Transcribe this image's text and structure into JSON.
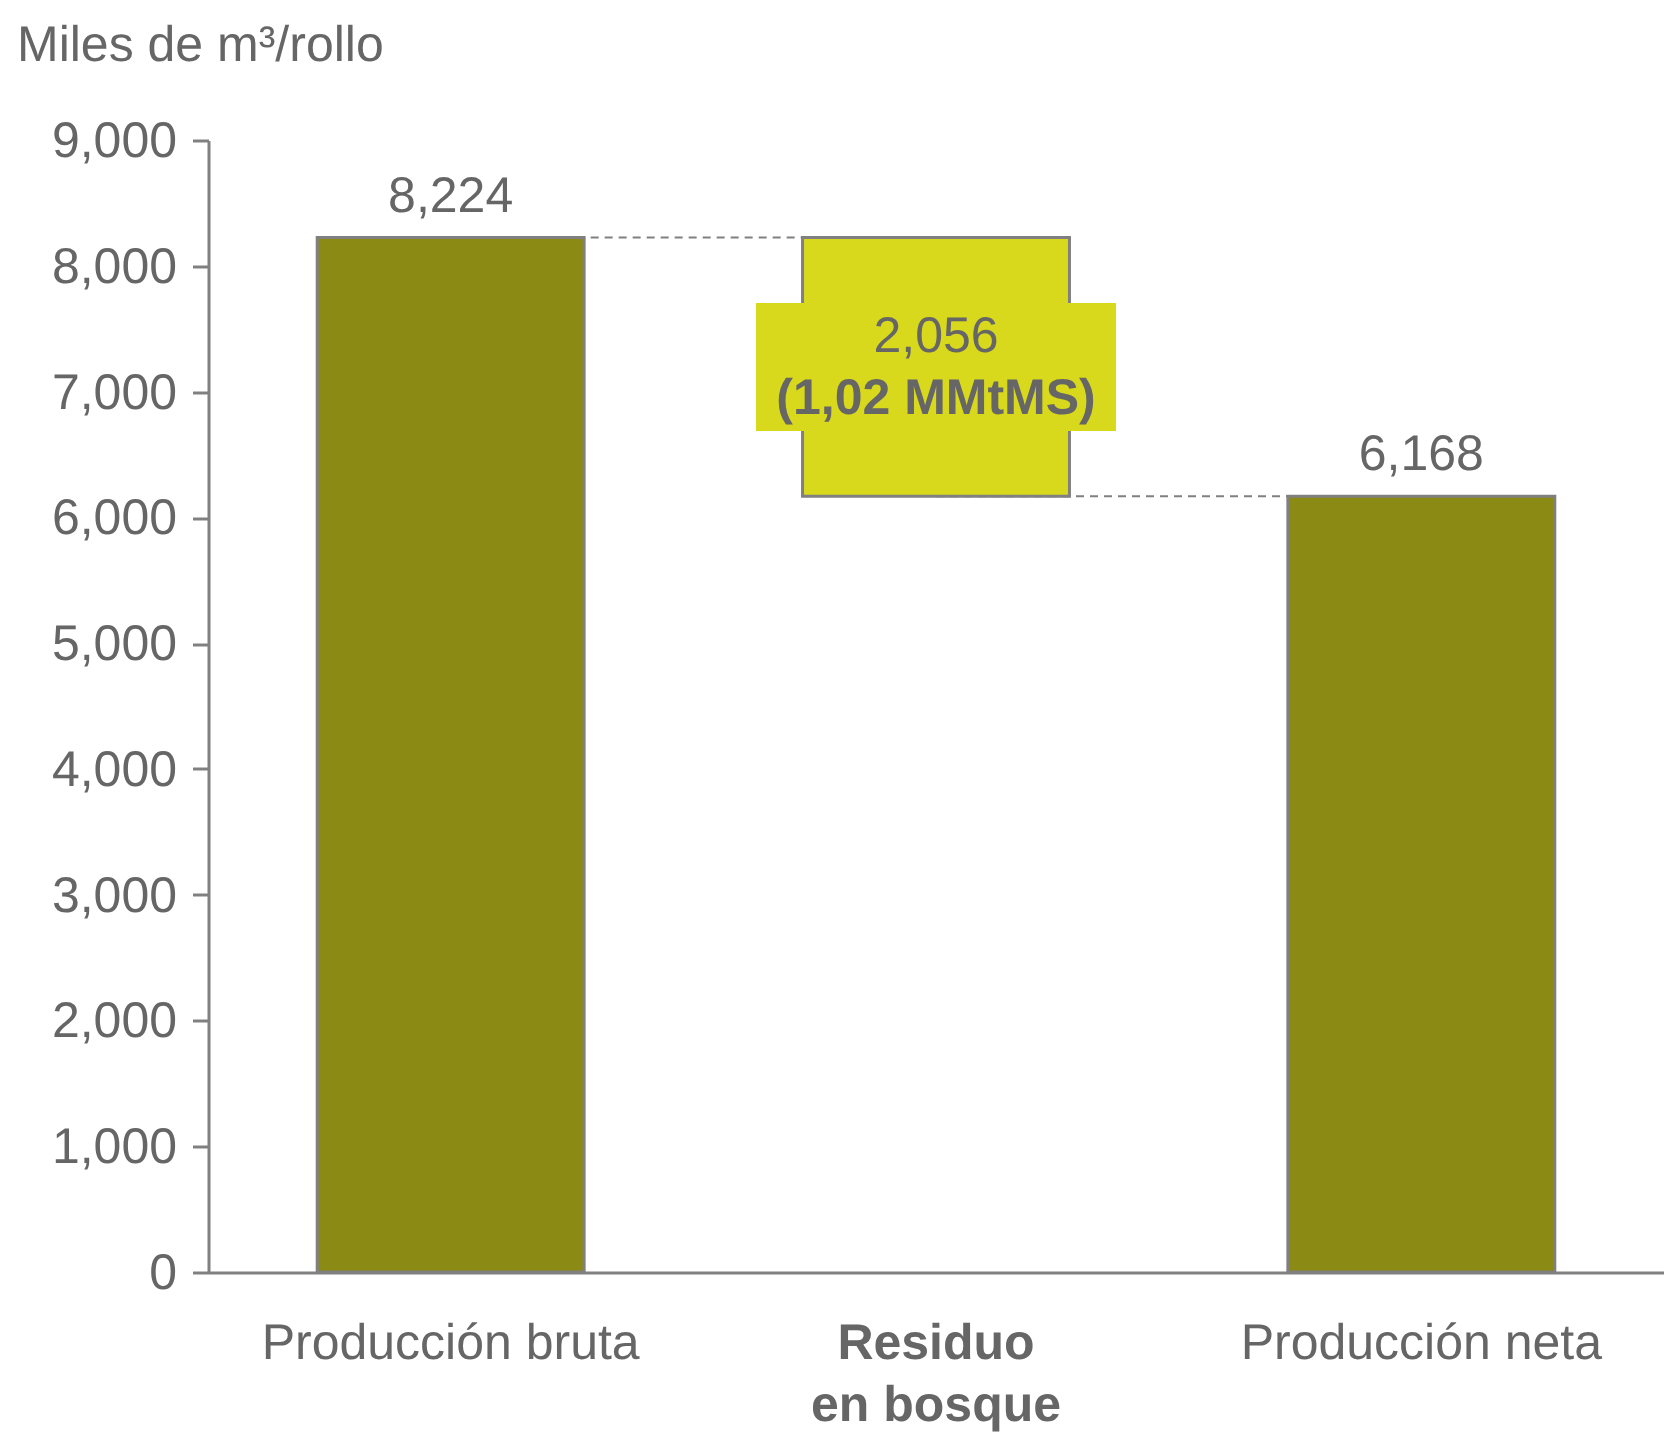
{
  "chart_data": {
    "type": "bar",
    "ylabel": "Miles de m³/rollo",
    "categories": [
      "Producción bruta",
      "Residuo\nen bosque",
      "Producción neta"
    ],
    "values": [
      8224,
      2056,
      6168
    ],
    "base": [
      0,
      6168,
      0
    ],
    "colors": [
      "#8a8a14",
      "#d8d81c",
      "#8a8a14"
    ],
    "value_labels": [
      "8,224",
      "2,056\n(1,02 MMtMS)",
      "6,168"
    ],
    "ylim": [
      0,
      9000
    ],
    "yticks": [
      0,
      {
        "value": 1000,
        "label": "1,000"
      },
      {
        "value": 2000,
        "label": "2,000"
      },
      {
        "value": 3000,
        "label": "3,000"
      },
      {
        "value": 4000,
        "label": "4,000"
      },
      {
        "value": 5000,
        "label": "5,000"
      },
      {
        "value": 6000,
        "label": "6,000"
      },
      {
        "value": 7000,
        "label": "7,000"
      },
      {
        "value": 8000,
        "label": "8,000"
      },
      {
        "value": 9000,
        "label": "9,000"
      }
    ]
  }
}
